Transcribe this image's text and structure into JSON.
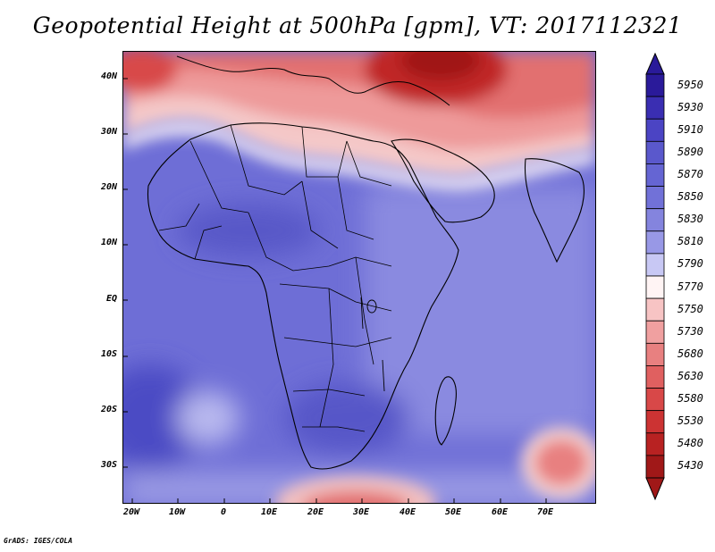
{
  "title": "Geopotential Height at 500hPa [gpm], VT: 2017112321",
  "footer": "GrADS: IGES/COLA",
  "map": {
    "lat_labels": [
      "40N",
      "30N",
      "20N",
      "10N",
      "EQ",
      "10S",
      "20S",
      "30S"
    ],
    "lon_labels": [
      "20W",
      "10W",
      "0",
      "10E",
      "20E",
      "30E",
      "40E",
      "50E",
      "60E",
      "70E"
    ]
  },
  "colorbar": {
    "levels": [
      "5950",
      "5930",
      "5910",
      "5890",
      "5870",
      "5850",
      "5830",
      "5810",
      "5790",
      "5770",
      "5750",
      "5730",
      "5680",
      "5630",
      "5580",
      "5530",
      "5480",
      "5430"
    ],
    "colors": [
      "#2a1a9a",
      "#3a2eb2",
      "#4b44c4",
      "#5a58cc",
      "#6565d3",
      "#7171d8",
      "#8484de",
      "#9898e6",
      "#c8c8f4",
      "#fff4f4",
      "#f7c4c4",
      "#f0a0a0",
      "#e88080",
      "#e06060",
      "#d84848",
      "#cc3333",
      "#b82222",
      "#a01818"
    ]
  }
}
